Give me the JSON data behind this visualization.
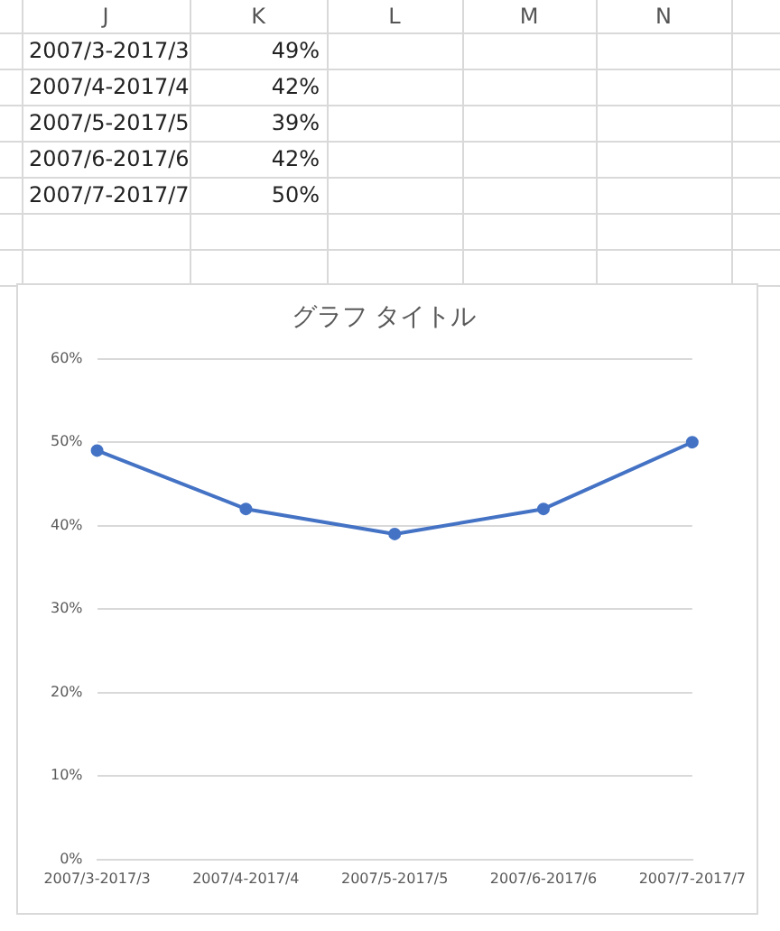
{
  "chart_data": {
    "type": "line",
    "title": "グラフ タイトル",
    "categories": [
      "2007/3-2017/3",
      "2007/4-2017/4",
      "2007/5-2017/5",
      "2007/6-2017/6",
      "2007/7-2017/7"
    ],
    "series": [
      {
        "color": "#4472c4",
        "values": [
          49,
          42,
          39,
          42,
          50
        ]
      }
    ],
    "ylim": [
      0,
      60
    ],
    "yticks": [
      {
        "value": 0,
        "label": "0%"
      },
      {
        "value": 10,
        "label": "10%"
      },
      {
        "value": 20,
        "label": "20%"
      },
      {
        "value": 30,
        "label": "30%"
      },
      {
        "value": 40,
        "label": "40%"
      },
      {
        "value": 50,
        "label": "50%"
      },
      {
        "value": 60,
        "label": "60%"
      }
    ],
    "grid": "y",
    "legend": false,
    "marker": "circle",
    "line_style": "solid",
    "annotations": [
      "J",
      "K",
      "L",
      "M",
      "N",
      "49%",
      "42%",
      "39%",
      "42%",
      "50%"
    ]
  }
}
